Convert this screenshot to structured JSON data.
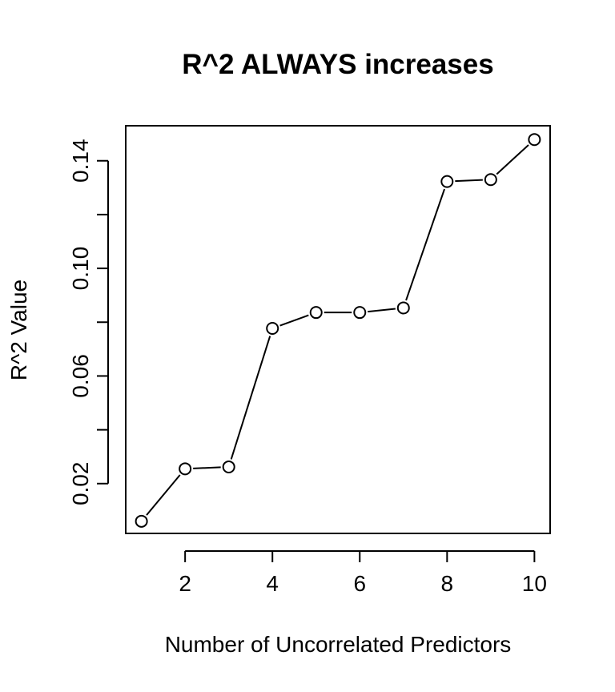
{
  "chart_data": {
    "type": "line",
    "title": "R^2 ALWAYS increases",
    "xlabel": "Number of Uncorrelated Predictors",
    "ylabel": "R^2 Value",
    "x": [
      1,
      2,
      3,
      4,
      5,
      6,
      7,
      8,
      9,
      10
    ],
    "series": [
      {
        "values": [
          0.006,
          0.0255,
          0.0262,
          0.0777,
          0.0836,
          0.0836,
          0.0853,
          0.1323,
          0.133,
          0.1479
        ]
      }
    ],
    "xlim": [
      0.64,
      10.36
    ],
    "ylim": [
      0.00148,
      0.15302
    ],
    "xticks": [
      2,
      4,
      6,
      8,
      10
    ],
    "xtick_labels": [
      "2",
      "4",
      "6",
      "8",
      "10"
    ],
    "yticks": [
      0.02,
      0.04,
      0.06,
      0.08,
      0.1,
      0.12,
      0.14
    ],
    "ytick_labels": [
      "0.02",
      "",
      "0.06",
      "",
      "0.10",
      "",
      "0.14"
    ],
    "grid": false,
    "legend": "none",
    "marker": "open-circle",
    "line_color": "#000000"
  }
}
